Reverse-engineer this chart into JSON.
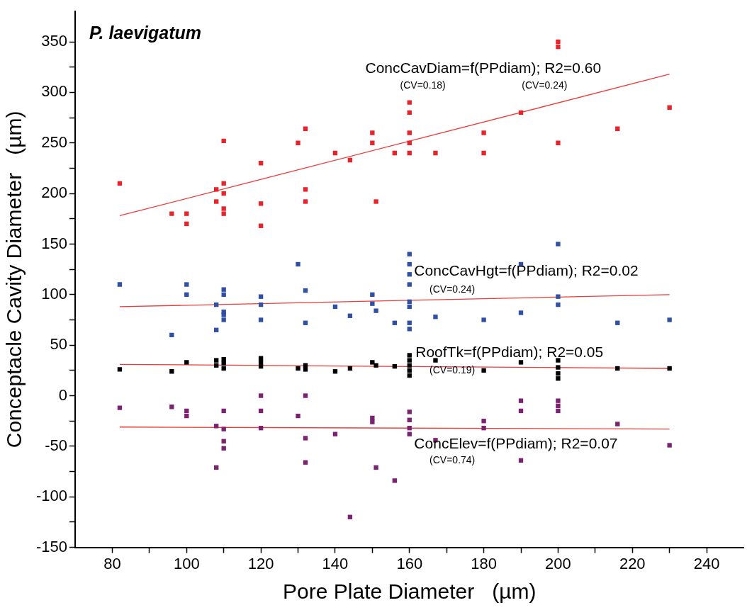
{
  "chart_data": {
    "type": "scatter",
    "title": "P. laevigatum",
    "xlabel": "Pore Plate Diameter   (µm)",
    "ylabel": "Conceptacle Cavity Diameter   (µm)",
    "xlim": [
      70,
      250
    ],
    "ylim": [
      -150,
      380
    ],
    "xticks": [
      80,
      {
        "value": 90,
        "label": null
      },
      100,
      {
        "value": 110,
        "label": null
      },
      120,
      {
        "value": 130,
        "label": null
      },
      140,
      {
        "value": 150,
        "label": null
      },
      160,
      {
        "value": 170,
        "label": null
      },
      180,
      {
        "value": 190,
        "label": null
      },
      200,
      {
        "value": 210,
        "label": null
      },
      220,
      {
        "value": 230,
        "label": null
      },
      240
    ],
    "yticks": [
      -150,
      {
        "value": -125,
        "label": null
      },
      -100,
      {
        "value": -75,
        "label": null
      },
      -50,
      {
        "value": -25,
        "label": null
      },
      0,
      {
        "value": 25,
        "label": null
      },
      50,
      {
        "value": 75,
        "label": null
      },
      100,
      {
        "value": 125,
        "label": null
      },
      150,
      {
        "value": 175,
        "label": null
      },
      200,
      {
        "value": 225,
        "label": null
      },
      250,
      {
        "value": 275,
        "label": null
      },
      300,
      {
        "value": 325,
        "label": null
      },
      350
    ],
    "grid": false,
    "legend": false,
    "marker": "square",
    "series": [
      {
        "color": "#e8232a",
        "x": [
          82,
          96,
          100,
          100,
          108,
          108,
          110,
          110,
          110,
          110,
          110,
          120,
          120,
          120,
          130,
          132,
          132,
          132,
          140,
          144,
          150,
          150,
          151,
          156,
          160,
          160,
          160,
          160,
          160,
          167,
          180,
          180,
          190,
          200,
          200,
          200,
          216,
          230
        ],
        "values": [
          210,
          180,
          180,
          170,
          204,
          192,
          252,
          210,
          200,
          185,
          180,
          230,
          190,
          168,
          250,
          264,
          204,
          192,
          240,
          233,
          260,
          250,
          192,
          240,
          290,
          280,
          260,
          250,
          240,
          240,
          260,
          240,
          280,
          350,
          345,
          250,
          264,
          285
        ]
      },
      {
        "color": "#3050a8",
        "x": [
          82,
          96,
          100,
          100,
          108,
          108,
          110,
          110,
          110,
          110,
          110,
          120,
          120,
          120,
          130,
          132,
          132,
          140,
          144,
          150,
          150,
          151,
          156,
          160,
          160,
          160,
          160,
          160,
          160,
          160,
          160,
          167,
          180,
          190,
          190,
          200,
          200,
          200,
          216,
          230
        ],
        "values": [
          110,
          60,
          110,
          100,
          90,
          65,
          105,
          100,
          83,
          80,
          75,
          98,
          90,
          75,
          130,
          104,
          72,
          88,
          79,
          100,
          91,
          84,
          72,
          140,
          130,
          120,
          110,
          93,
          88,
          72,
          66,
          78,
          75,
          130,
          82,
          150,
          98,
          90,
          72,
          75
        ]
      },
      {
        "color": "#000000",
        "x": [
          82,
          96,
          100,
          108,
          108,
          110,
          110,
          110,
          120,
          120,
          120,
          130,
          132,
          132,
          140,
          144,
          150,
          151,
          156,
          160,
          160,
          160,
          160,
          160,
          167,
          180,
          190,
          200,
          200,
          200,
          200,
          216,
          230
        ],
        "values": [
          26,
          24,
          33,
          35,
          30,
          36,
          32,
          27,
          37,
          33,
          29,
          27,
          30,
          26,
          24,
          27,
          33,
          30,
          29,
          40,
          35,
          30,
          25,
          20,
          35,
          25,
          33,
          35,
          28,
          22,
          17,
          27,
          27
        ]
      },
      {
        "color": "#7b2370",
        "x": [
          82,
          96,
          100,
          100,
          108,
          108,
          110,
          110,
          110,
          110,
          120,
          120,
          120,
          130,
          132,
          132,
          132,
          140,
          144,
          150,
          150,
          151,
          156,
          160,
          160,
          160,
          160,
          167,
          180,
          180,
          190,
          190,
          190,
          200,
          200,
          200,
          216,
          230
        ],
        "values": [
          -12,
          -11,
          -15,
          -20,
          -30,
          -71,
          -15,
          -33,
          -45,
          -52,
          0,
          -15,
          -32,
          -20,
          0,
          -42,
          -66,
          -38,
          -120,
          -22,
          -26,
          -71,
          -84,
          -16,
          -24,
          -32,
          -38,
          -44,
          -25,
          -32,
          -5,
          -15,
          -64,
          -5,
          -10,
          -15,
          -28,
          -49
        ]
      },
      {
        "type": "line",
        "marker": "none",
        "color": "#ee3a3a",
        "x": [
          82,
          230
        ],
        "values": [
          178,
          318
        ]
      },
      {
        "type": "line",
        "marker": "none",
        "color": "#ee3a3a",
        "x": [
          82,
          230
        ],
        "values": [
          88,
          100
        ]
      },
      {
        "type": "line",
        "marker": "none",
        "color": "#ee3a3a",
        "x": [
          82,
          230
        ],
        "values": [
          31,
          27
        ]
      },
      {
        "type": "line",
        "marker": "none",
        "color": "#ee3a3a",
        "x": [
          82,
          230
        ],
        "values": [
          -31,
          -33
        ]
      }
    ],
    "annotations": [
      "ConcCavDiam=f(PPdiam); R2=0.60",
      "(CV=0.18)",
      "(CV=0.24)",
      "ConcCavHgt=f(PPdiam); R2=0.02",
      "(CV=0.24)",
      "RoofTk=f(PPdiam); R2=0.05",
      "(CV=0.19)",
      "ConcElev=f(PPdiam); R2=0.07",
      "(CV=0.74)"
    ]
  }
}
